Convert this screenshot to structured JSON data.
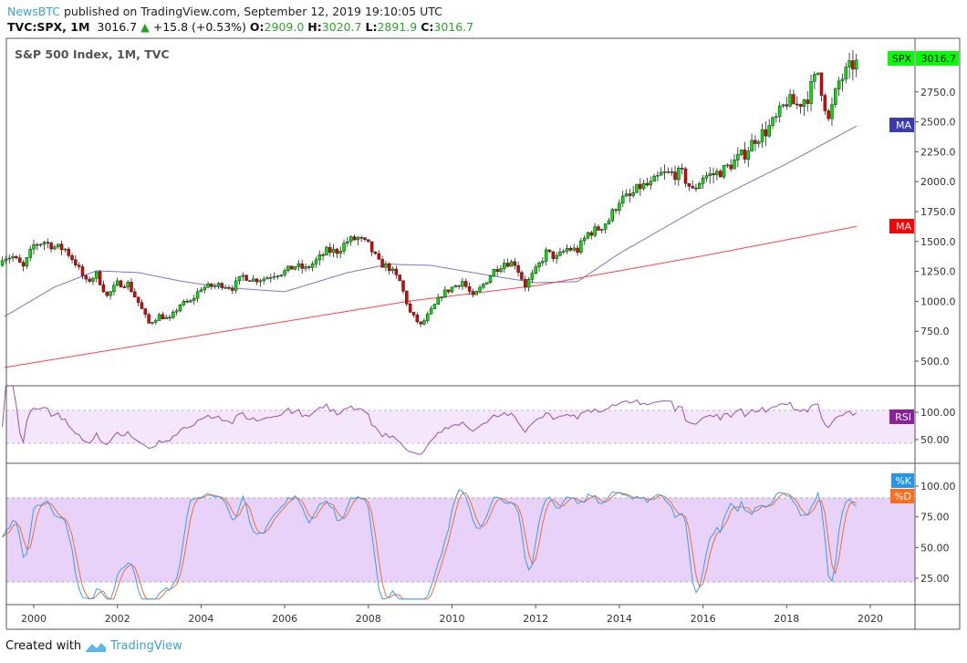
{
  "header": {
    "publisher": "NewsBTC",
    "published_text": "published on TradingView.com, September 12, 2019 19:10:05 UTC",
    "symbol": "TVC:SPX, 1M",
    "last": "3016.7",
    "change": "+15.8 (+0.53%)",
    "o_label": "O:",
    "o": "2909.0",
    "h_label": "H:",
    "h": "3020.7",
    "l_label": "L:",
    "l": "2891.9",
    "c_label": "C:",
    "c": "3016.7"
  },
  "footer": {
    "created_with": "Created with",
    "brand": "TradingView"
  },
  "chart_data": {
    "type": "candlestick",
    "title": "S&P 500 Index, 1M, TVC",
    "colors": {
      "up": "#00e600",
      "down": "#e60000",
      "ma_fast": "#7777cc",
      "ma_slow": "#ff4444",
      "rsi": "#9a4fb5",
      "k": "#3d9cf0",
      "d": "#f07030"
    },
    "price_axis": {
      "ticks": [
        "500.0",
        "750.0",
        "1000.0",
        "1250.0",
        "1500.0",
        "1750.0",
        "2000.0",
        "2250.0",
        "2500.0",
        "2750.0"
      ],
      "last_label": "SPX",
      "last_value": "3016.7"
    },
    "ma_labels": [
      "MA",
      "MA"
    ],
    "x_ticks": [
      "2000",
      "2002",
      "2004",
      "2006",
      "2008",
      "2010",
      "2012",
      "2014",
      "2016",
      "2018",
      "2020"
    ],
    "quarterly_closes": {
      "start": "1999-Q2",
      "values": [
        1373,
        1282,
        1469,
        1499,
        1455,
        1436,
        1320,
        1160,
        1224,
        1041,
        1148,
        1147,
        990,
        815,
        880,
        848,
        975,
        996,
        1112,
        1126,
        1141,
        1115,
        1212,
        1181,
        1191,
        1229,
        1248,
        1295,
        1270,
        1336,
        1418,
        1421,
        1503,
        1527,
        1468,
        1323,
        1280,
        1166,
        903,
        798,
        919,
        1057,
        1115,
        1169,
        1031,
        1141,
        1258,
        1326,
        1321,
        1131,
        1258,
        1408,
        1362,
        1441,
        1426,
        1569,
        1606,
        1682,
        1848,
        1872,
        1960,
        1972,
        2059,
        2068,
        2063,
        1920,
        2044,
        2060,
        2099,
        2168,
        2239,
        2363,
        2423,
        2519,
        2674,
        2641,
        2718,
        2914,
        2507,
        2834,
        2942,
        3016.7
      ]
    },
    "ma_fast": [
      [
        1999.3,
        873
      ],
      [
        2000.5,
        1120
      ],
      [
        2001.5,
        1255
      ],
      [
        2002.5,
        1240
      ],
      [
        2003.5,
        1170
      ],
      [
        2004.5,
        1117
      ],
      [
        2006,
        1080
      ],
      [
        2007.5,
        1240
      ],
      [
        2008.5,
        1310
      ],
      [
        2009.5,
        1300
      ],
      [
        2011,
        1210
      ],
      [
        2012,
        1155
      ],
      [
        2013,
        1165
      ],
      [
        2014,
        1400
      ],
      [
        2016,
        1800
      ],
      [
        2018,
        2150
      ],
      [
        2019.7,
        2470
      ]
    ],
    "ma_slow": [
      [
        1999.3,
        447
      ],
      [
        2009,
        1003
      ],
      [
        2012,
        1130
      ],
      [
        2016,
        1380
      ],
      [
        2019.7,
        1628
      ]
    ],
    "rsi": {
      "label": "RSI",
      "ticks": [
        "100.00",
        "50.00"
      ]
    },
    "stoch": {
      "labels": [
        "%K",
        "%D"
      ],
      "ticks": [
        "100.00",
        "75.00",
        "50.00",
        "25.00"
      ]
    }
  }
}
